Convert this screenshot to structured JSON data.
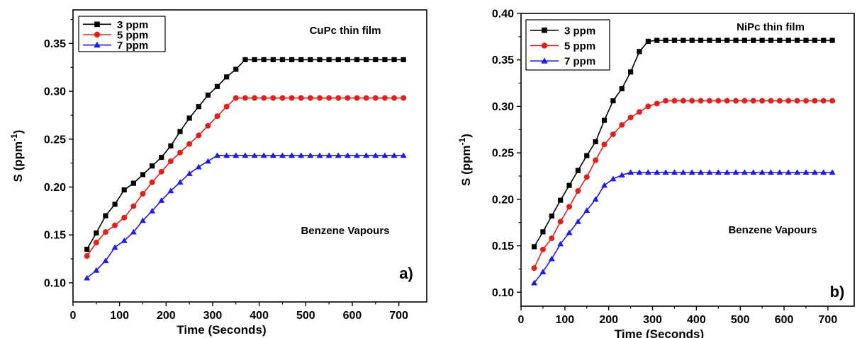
{
  "chart_data": [
    {
      "type": "line",
      "panel_label": "a)",
      "title": "",
      "annotations": [
        "CuPc thin film",
        "Benzene Vapours"
      ],
      "xlabel": "Time (Seconds)",
      "ylabel": "S (ppm",
      "ylabel_sup": "-1",
      "ylabel_close": ")",
      "xlim": [
        0,
        760
      ],
      "ylim": [
        0.08,
        0.385
      ],
      "xticks": [
        0,
        100,
        200,
        300,
        400,
        500,
        600,
        700
      ],
      "xtick_labels": [
        "0",
        "100",
        "200",
        "300",
        "400",
        "500",
        "600",
        "700"
      ],
      "yticks": [
        0.1,
        0.15,
        0.2,
        0.25,
        0.3,
        0.35
      ],
      "ytick_labels": [
        "0.10",
        "0.15",
        "0.20",
        "0.25",
        "0.30",
        "0.35"
      ],
      "legend_position": "top-left",
      "series": [
        {
          "name": "3 ppm",
          "color": "#000000",
          "marker": "square",
          "x": [
            30,
            50,
            70,
            90,
            110,
            130,
            150,
            170,
            190,
            210,
            230,
            250,
            270,
            290,
            310,
            330,
            350,
            370,
            390,
            410,
            430,
            450,
            470,
            490,
            510,
            530,
            550,
            570,
            590,
            610,
            630,
            650,
            670,
            690,
            710
          ],
          "y": [
            0.135,
            0.152,
            0.17,
            0.182,
            0.197,
            0.204,
            0.213,
            0.222,
            0.231,
            0.243,
            0.258,
            0.272,
            0.284,
            0.296,
            0.305,
            0.315,
            0.323,
            0.333,
            0.333,
            0.333,
            0.333,
            0.333,
            0.333,
            0.333,
            0.333,
            0.333,
            0.333,
            0.333,
            0.333,
            0.333,
            0.333,
            0.333,
            0.333,
            0.333,
            0.333
          ]
        },
        {
          "name": "5 ppm",
          "color": "#e0201c",
          "marker": "circle",
          "x": [
            30,
            50,
            70,
            90,
            110,
            130,
            150,
            170,
            190,
            210,
            230,
            250,
            270,
            290,
            310,
            330,
            350,
            370,
            390,
            410,
            430,
            450,
            470,
            490,
            510,
            530,
            550,
            570,
            590,
            610,
            630,
            650,
            670,
            690,
            710
          ],
          "y": [
            0.128,
            0.142,
            0.153,
            0.16,
            0.168,
            0.18,
            0.193,
            0.205,
            0.216,
            0.227,
            0.236,
            0.245,
            0.254,
            0.264,
            0.274,
            0.284,
            0.293,
            0.293,
            0.293,
            0.293,
            0.293,
            0.293,
            0.293,
            0.293,
            0.293,
            0.293,
            0.293,
            0.293,
            0.293,
            0.293,
            0.293,
            0.293,
            0.293,
            0.293,
            0.293
          ]
        },
        {
          "name": "7 ppm",
          "color": "#1c1cf0",
          "marker": "triangle",
          "x": [
            30,
            50,
            70,
            90,
            110,
            130,
            150,
            170,
            190,
            210,
            230,
            250,
            270,
            290,
            310,
            330,
            350,
            370,
            390,
            410,
            430,
            450,
            470,
            490,
            510,
            530,
            550,
            570,
            590,
            610,
            630,
            650,
            670,
            690,
            710
          ],
          "y": [
            0.105,
            0.113,
            0.123,
            0.137,
            0.144,
            0.153,
            0.165,
            0.175,
            0.186,
            0.196,
            0.205,
            0.214,
            0.221,
            0.227,
            0.233,
            0.233,
            0.233,
            0.233,
            0.233,
            0.233,
            0.233,
            0.233,
            0.233,
            0.233,
            0.233,
            0.233,
            0.233,
            0.233,
            0.233,
            0.233,
            0.233,
            0.233,
            0.233,
            0.233,
            0.233
          ]
        }
      ]
    },
    {
      "type": "line",
      "panel_label": "b)",
      "title": "",
      "annotations": [
        "NiPc thin film",
        "Benzene Vapours"
      ],
      "xlabel": "Time (Seconds)",
      "ylabel": "S (ppm",
      "ylabel_sup": "-1",
      "ylabel_close": ")",
      "xlim": [
        0,
        760
      ],
      "ylim": [
        0.085,
        0.4
      ],
      "xticks": [
        0,
        100,
        200,
        300,
        400,
        500,
        600,
        700
      ],
      "xtick_labels": [
        "0",
        "100",
        "200",
        "300",
        "400",
        "500",
        "600",
        "700"
      ],
      "yticks": [
        0.1,
        0.15,
        0.2,
        0.25,
        0.3,
        0.35,
        0.4
      ],
      "ytick_labels": [
        "0.10",
        "0.15",
        "0.20",
        "0.25",
        "0.30",
        "0.35",
        "0.40"
      ],
      "legend_position": "top-left",
      "series": [
        {
          "name": "3 ppm",
          "color": "#000000",
          "marker": "square",
          "x": [
            30,
            50,
            70,
            90,
            110,
            130,
            150,
            170,
            190,
            210,
            230,
            250,
            270,
            290,
            310,
            330,
            350,
            370,
            390,
            410,
            430,
            450,
            470,
            490,
            510,
            530,
            550,
            570,
            590,
            610,
            630,
            650,
            670,
            690,
            710
          ],
          "y": [
            0.149,
            0.165,
            0.182,
            0.199,
            0.215,
            0.231,
            0.247,
            0.262,
            0.285,
            0.306,
            0.319,
            0.337,
            0.359,
            0.37,
            0.371,
            0.371,
            0.371,
            0.371,
            0.371,
            0.371,
            0.371,
            0.371,
            0.371,
            0.371,
            0.371,
            0.371,
            0.371,
            0.371,
            0.371,
            0.371,
            0.371,
            0.371,
            0.371,
            0.371,
            0.371
          ]
        },
        {
          "name": "5 ppm",
          "color": "#e0201c",
          "marker": "circle",
          "x": [
            30,
            50,
            70,
            90,
            110,
            130,
            150,
            170,
            190,
            210,
            230,
            250,
            270,
            290,
            310,
            330,
            350,
            370,
            390,
            410,
            430,
            450,
            470,
            490,
            510,
            530,
            550,
            570,
            590,
            610,
            630,
            650,
            670,
            690,
            710
          ],
          "y": [
            0.126,
            0.146,
            0.158,
            0.176,
            0.192,
            0.209,
            0.224,
            0.242,
            0.259,
            0.27,
            0.28,
            0.288,
            0.294,
            0.3,
            0.303,
            0.306,
            0.306,
            0.306,
            0.306,
            0.306,
            0.306,
            0.306,
            0.306,
            0.306,
            0.306,
            0.306,
            0.306,
            0.306,
            0.306,
            0.306,
            0.306,
            0.306,
            0.306,
            0.306,
            0.306
          ]
        },
        {
          "name": "7 ppm",
          "color": "#1c1cf0",
          "marker": "triangle",
          "x": [
            30,
            50,
            70,
            90,
            110,
            130,
            150,
            170,
            190,
            210,
            230,
            250,
            270,
            290,
            310,
            330,
            350,
            370,
            390,
            410,
            430,
            450,
            470,
            490,
            510,
            530,
            550,
            570,
            590,
            610,
            630,
            650,
            670,
            690,
            710
          ],
          "y": [
            0.11,
            0.122,
            0.136,
            0.152,
            0.164,
            0.176,
            0.188,
            0.2,
            0.215,
            0.222,
            0.226,
            0.229,
            0.229,
            0.229,
            0.229,
            0.229,
            0.229,
            0.229,
            0.229,
            0.229,
            0.229,
            0.229,
            0.229,
            0.229,
            0.229,
            0.229,
            0.229,
            0.229,
            0.229,
            0.229,
            0.229,
            0.229,
            0.229,
            0.229,
            0.229
          ]
        }
      ]
    }
  ]
}
